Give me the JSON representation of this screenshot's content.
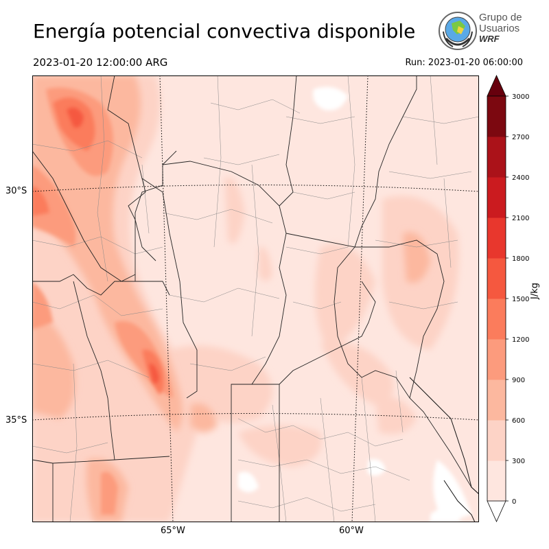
{
  "header": {
    "title": "Energía potencial convectiva disponible",
    "valid_time": "2023-01-20 12:00:00 ARG",
    "run_time": "Run: 2023-01-20 06:00:00"
  },
  "logo": {
    "line1": "Grupo de",
    "line2": "Usuarios",
    "line3": "WRF"
  },
  "map": {
    "lat_labels": [
      "30°S",
      "35°S"
    ],
    "lon_labels": [
      "65°W",
      "60°W"
    ]
  },
  "colorbar": {
    "unit": "J/kg",
    "ticks": [
      "0",
      "300",
      "600",
      "900",
      "1200",
      "1500",
      "1800",
      "2100",
      "2400",
      "2700",
      "3000"
    ],
    "colors": [
      "#fee6df",
      "#fdd3c6",
      "#fcb89f",
      "#fc9b7d",
      "#fb7c5c",
      "#f5583f",
      "#e8372d",
      "#cb1b1f",
      "#ab1219",
      "#7c0810"
    ],
    "over_color": "#67000d",
    "under_color": "#ffffff",
    "extend": "both"
  }
}
